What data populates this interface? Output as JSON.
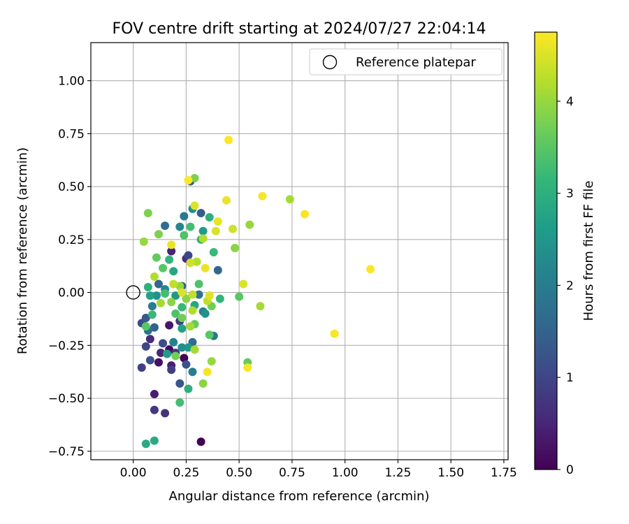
{
  "chart_data": {
    "type": "scatter",
    "title": "FOV centre drift starting at 2024/07/27 22:04:14",
    "xlabel": "Angular distance from reference (arcmin)",
    "ylabel": "Rotation from reference (arcmin)",
    "xlim": [
      -0.2,
      1.77
    ],
    "ylim": [
      -0.79,
      1.18
    ],
    "xticks": [
      0.0,
      0.25,
      0.5,
      0.75,
      1.0,
      1.25,
      1.5,
      1.75
    ],
    "xtick_labels": [
      "0.00",
      "0.25",
      "0.50",
      "0.75",
      "1.00",
      "1.25",
      "1.50",
      "1.75"
    ],
    "yticks": [
      -0.75,
      -0.5,
      -0.25,
      0.0,
      0.25,
      0.5,
      0.75,
      1.0
    ],
    "ytick_labels": [
      "−0.75",
      "−0.50",
      "−0.25",
      "0.00",
      "0.25",
      "0.50",
      "0.75",
      "1.00"
    ],
    "grid": true,
    "legend": {
      "placement": "top-right",
      "entries": [
        "Reference platepar"
      ]
    },
    "reference_point": {
      "x": 0.0,
      "y": 0.0,
      "style": "hollow-circle"
    },
    "colorbar": {
      "label": "Hours from first FF file",
      "colormap": "viridis",
      "range": [
        0,
        4.75
      ],
      "ticks": [
        0,
        1,
        2,
        3,
        4
      ],
      "tick_labels": [
        "0",
        "1",
        "2",
        "3",
        "4"
      ],
      "colors": [
        "#440154",
        "#482878",
        "#3e4989",
        "#31688e",
        "#26828e",
        "#1f9e89",
        "#35b779",
        "#6ece58",
        "#b5de2b",
        "#fde725"
      ]
    },
    "series": [
      {
        "points": [
          {
            "x": 0.32,
            "y": -0.705,
            "c": 0.0
          },
          {
            "x": 0.24,
            "y": -0.31,
            "c": 0.0
          },
          {
            "x": 0.17,
            "y": -0.27,
            "c": 0.1
          },
          {
            "x": 0.12,
            "y": -0.33,
            "c": 0.2
          },
          {
            "x": 0.17,
            "y": -0.155,
            "c": 0.3
          },
          {
            "x": 0.1,
            "y": -0.48,
            "c": 0.4
          },
          {
            "x": 0.18,
            "y": -0.345,
            "c": 0.4
          },
          {
            "x": 0.18,
            "y": 0.195,
            "c": 0.5
          },
          {
            "x": 0.13,
            "y": -0.285,
            "c": 0.5
          },
          {
            "x": 0.25,
            "y": 0.16,
            "c": 0.6
          },
          {
            "x": 0.08,
            "y": -0.22,
            "c": 0.6
          },
          {
            "x": 0.2,
            "y": -0.285,
            "c": 0.7
          },
          {
            "x": 0.15,
            "y": -0.57,
            "c": 0.7
          },
          {
            "x": 0.1,
            "y": -0.555,
            "c": 0.8
          },
          {
            "x": 0.22,
            "y": -0.135,
            "c": 0.8
          },
          {
            "x": 0.04,
            "y": -0.355,
            "c": 0.9
          },
          {
            "x": 0.18,
            "y": -0.365,
            "c": 0.9
          },
          {
            "x": 0.26,
            "y": 0.175,
            "c": 1.0
          },
          {
            "x": 0.06,
            "y": -0.255,
            "c": 1.0
          },
          {
            "x": 0.04,
            "y": -0.145,
            "c": 1.1
          },
          {
            "x": 0.14,
            "y": -0.24,
            "c": 1.1
          },
          {
            "x": 0.25,
            "y": -0.34,
            "c": 1.2
          },
          {
            "x": 0.08,
            "y": -0.32,
            "c": 1.2
          },
          {
            "x": 0.06,
            "y": -0.12,
            "c": 1.3
          },
          {
            "x": 0.22,
            "y": -0.43,
            "c": 1.3
          },
          {
            "x": 0.27,
            "y": 0.525,
            "c": 1.4
          },
          {
            "x": 0.32,
            "y": 0.375,
            "c": 1.4
          },
          {
            "x": 0.1,
            "y": -0.165,
            "c": 1.5
          },
          {
            "x": 0.23,
            "y": 0.03,
            "c": 1.5
          },
          {
            "x": 0.4,
            "y": 0.105,
            "c": 1.6
          },
          {
            "x": 0.12,
            "y": 0.04,
            "c": 1.6
          },
          {
            "x": 0.28,
            "y": -0.235,
            "c": 1.7
          },
          {
            "x": 0.15,
            "y": 0.315,
            "c": 1.7
          },
          {
            "x": 0.07,
            "y": -0.18,
            "c": 1.8
          },
          {
            "x": 0.31,
            "y": -0.01,
            "c": 1.8
          },
          {
            "x": 0.38,
            "y": -0.205,
            "c": 1.9
          },
          {
            "x": 0.24,
            "y": 0.36,
            "c": 1.9
          },
          {
            "x": 0.09,
            "y": -0.065,
            "c": 2.0
          },
          {
            "x": 0.28,
            "y": -0.375,
            "c": 2.0
          },
          {
            "x": 0.19,
            "y": -0.235,
            "c": 2.1
          },
          {
            "x": 0.33,
            "y": -0.09,
            "c": 2.1
          },
          {
            "x": 0.22,
            "y": 0.31,
            "c": 2.2
          },
          {
            "x": 0.15,
            "y": 0.015,
            "c": 2.2
          },
          {
            "x": 0.23,
            "y": -0.26,
            "c": 2.3
          },
          {
            "x": 0.28,
            "y": 0.395,
            "c": 2.3
          },
          {
            "x": 0.11,
            "y": -0.015,
            "c": 2.4
          },
          {
            "x": 0.34,
            "y": -0.1,
            "c": 2.4
          },
          {
            "x": 0.2,
            "y": -0.015,
            "c": 2.5
          },
          {
            "x": 0.26,
            "y": -0.26,
            "c": 2.5
          },
          {
            "x": 0.33,
            "y": 0.29,
            "c": 2.6
          },
          {
            "x": 0.16,
            "y": -0.29,
            "c": 2.6
          },
          {
            "x": 0.08,
            "y": -0.015,
            "c": 2.7
          },
          {
            "x": 0.23,
            "y": -0.17,
            "c": 2.7
          },
          {
            "x": 0.19,
            "y": 0.1,
            "c": 2.8
          },
          {
            "x": 0.29,
            "y": -0.06,
            "c": 2.8
          },
          {
            "x": 0.06,
            "y": -0.715,
            "c": 2.9
          },
          {
            "x": 0.1,
            "y": -0.7,
            "c": 2.9
          },
          {
            "x": 0.26,
            "y": -0.455,
            "c": 3.0
          },
          {
            "x": 0.36,
            "y": 0.355,
            "c": 3.0
          },
          {
            "x": 0.07,
            "y": 0.025,
            "c": 3.0
          },
          {
            "x": 0.17,
            "y": 0.155,
            "c": 3.1
          },
          {
            "x": 0.32,
            "y": 0.25,
            "c": 3.1
          },
          {
            "x": 0.41,
            "y": -0.03,
            "c": 3.1
          },
          {
            "x": 0.23,
            "y": -0.07,
            "c": 3.2
          },
          {
            "x": 0.09,
            "y": -0.105,
            "c": 3.2
          },
          {
            "x": 0.38,
            "y": 0.19,
            "c": 3.2
          },
          {
            "x": 0.22,
            "y": -0.52,
            "c": 3.3
          },
          {
            "x": 0.27,
            "y": 0.31,
            "c": 3.3
          },
          {
            "x": 0.15,
            "y": -0.005,
            "c": 3.3
          },
          {
            "x": 0.31,
            "y": 0.04,
            "c": 3.4
          },
          {
            "x": 0.24,
            "y": 0.27,
            "c": 3.4
          },
          {
            "x": 0.2,
            "y": -0.1,
            "c": 3.4
          },
          {
            "x": 0.36,
            "y": -0.2,
            "c": 3.5
          },
          {
            "x": 0.06,
            "y": -0.16,
            "c": 3.5
          },
          {
            "x": 0.5,
            "y": -0.02,
            "c": 3.5
          },
          {
            "x": 0.14,
            "y": 0.115,
            "c": 3.5
          },
          {
            "x": 0.54,
            "y": -0.33,
            "c": 3.6
          },
          {
            "x": 0.29,
            "y": -0.15,
            "c": 3.6
          },
          {
            "x": 0.11,
            "y": 0.165,
            "c": 3.6
          },
          {
            "x": 0.23,
            "y": -0.12,
            "c": 3.7
          },
          {
            "x": 0.37,
            "y": -0.065,
            "c": 3.7
          },
          {
            "x": 0.2,
            "y": -0.3,
            "c": 3.7
          },
          {
            "x": 0.07,
            "y": 0.375,
            "c": 3.8
          },
          {
            "x": 0.12,
            "y": 0.275,
            "c": 3.8
          },
          {
            "x": 0.29,
            "y": 0.54,
            "c": 3.8
          },
          {
            "x": 0.48,
            "y": 0.21,
            "c": 3.9
          },
          {
            "x": 0.18,
            "y": -0.045,
            "c": 3.9
          },
          {
            "x": 0.33,
            "y": -0.43,
            "c": 3.9
          },
          {
            "x": 0.25,
            "y": -0.03,
            "c": 3.9
          },
          {
            "x": 0.55,
            "y": 0.32,
            "c": 4.0
          },
          {
            "x": 0.05,
            "y": 0.24,
            "c": 4.0
          },
          {
            "x": 0.37,
            "y": -0.325,
            "c": 4.0
          },
          {
            "x": 0.22,
            "y": 0.03,
            "c": 4.0
          },
          {
            "x": 0.29,
            "y": -0.27,
            "c": 4.1
          },
          {
            "x": 0.13,
            "y": -0.05,
            "c": 4.1
          },
          {
            "x": 0.27,
            "y": -0.16,
            "c": 4.1
          },
          {
            "x": 0.74,
            "y": 0.44,
            "c": 4.1
          },
          {
            "x": 0.6,
            "y": -0.065,
            "c": 4.1
          },
          {
            "x": 0.3,
            "y": 0.145,
            "c": 4.2
          },
          {
            "x": 0.28,
            "y": -0.085,
            "c": 4.2
          },
          {
            "x": 0.1,
            "y": 0.075,
            "c": 4.2
          },
          {
            "x": 0.33,
            "y": 0.255,
            "c": 4.2
          },
          {
            "x": 0.19,
            "y": 0.04,
            "c": 4.3
          },
          {
            "x": 0.35,
            "y": -0.04,
            "c": 4.3
          },
          {
            "x": 0.28,
            "y": -0.01,
            "c": 4.3
          },
          {
            "x": 0.27,
            "y": 0.14,
            "c": 4.4
          },
          {
            "x": 0.47,
            "y": 0.3,
            "c": 4.4
          },
          {
            "x": 0.52,
            "y": 0.04,
            "c": 4.5
          },
          {
            "x": 0.36,
            "y": -0.015,
            "c": 4.5
          },
          {
            "x": 0.39,
            "y": 0.29,
            "c": 4.5
          },
          {
            "x": 0.23,
            "y": 0.0,
            "c": 4.5
          },
          {
            "x": 0.29,
            "y": 0.41,
            "c": 4.5
          },
          {
            "x": 0.18,
            "y": 0.225,
            "c": 4.6
          },
          {
            "x": 0.34,
            "y": 0.115,
            "c": 4.6
          },
          {
            "x": 0.4,
            "y": 0.335,
            "c": 4.6
          },
          {
            "x": 0.44,
            "y": 0.435,
            "c": 4.6
          },
          {
            "x": 0.61,
            "y": 0.455,
            "c": 4.7
          },
          {
            "x": 0.81,
            "y": 0.37,
            "c": 4.7
          },
          {
            "x": 0.35,
            "y": -0.375,
            "c": 4.7
          },
          {
            "x": 0.54,
            "y": -0.355,
            "c": 4.7
          },
          {
            "x": 0.95,
            "y": -0.195,
            "c": 4.7
          },
          {
            "x": 1.12,
            "y": 0.11,
            "c": 4.75
          },
          {
            "x": 0.45,
            "y": 0.72,
            "c": 4.75
          },
          {
            "x": 0.26,
            "y": 0.53,
            "c": 4.75
          }
        ]
      }
    ]
  }
}
